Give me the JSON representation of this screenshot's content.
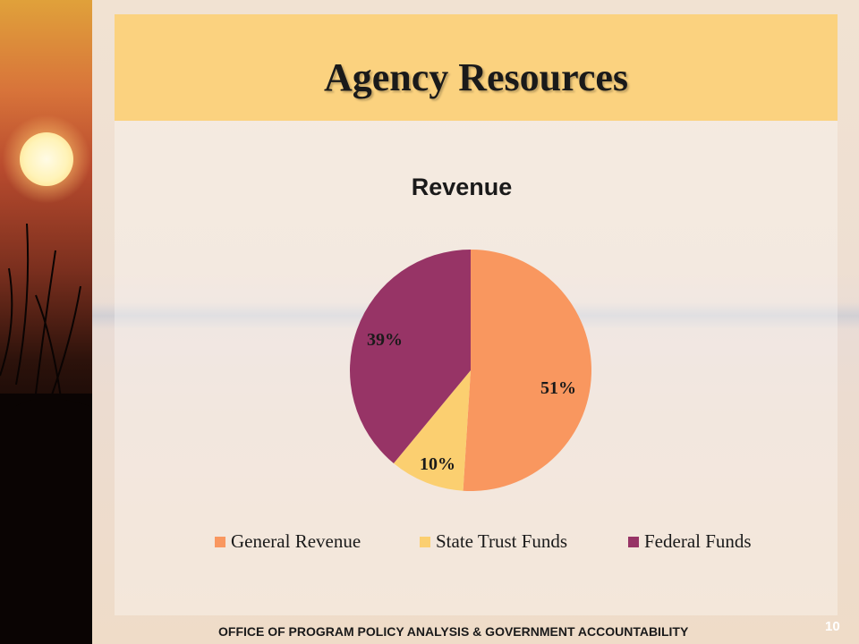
{
  "slide": {
    "title": "Agency Resources",
    "footer": "OFFICE OF PROGRAM POLICY ANALYSIS & GOVERNMENT ACCOUNTABILITY",
    "page_number": "10"
  },
  "colors": {
    "title_band": "#fbd27f",
    "general_revenue": "#f9975f",
    "state_trust_funds": "#fbcf70",
    "federal_funds": "#973466"
  },
  "chart_data": {
    "type": "pie",
    "title": "Revenue",
    "slices": [
      {
        "name": "General Revenue",
        "value": 51,
        "label": "51%",
        "color": "#f9975f"
      },
      {
        "name": "State Trust Funds",
        "value": 10,
        "label": "10%",
        "color": "#fbcf70"
      },
      {
        "name": "Federal Funds",
        "value": 39,
        "label": "39%",
        "color": "#973466"
      }
    ],
    "legend_position": "bottom"
  }
}
